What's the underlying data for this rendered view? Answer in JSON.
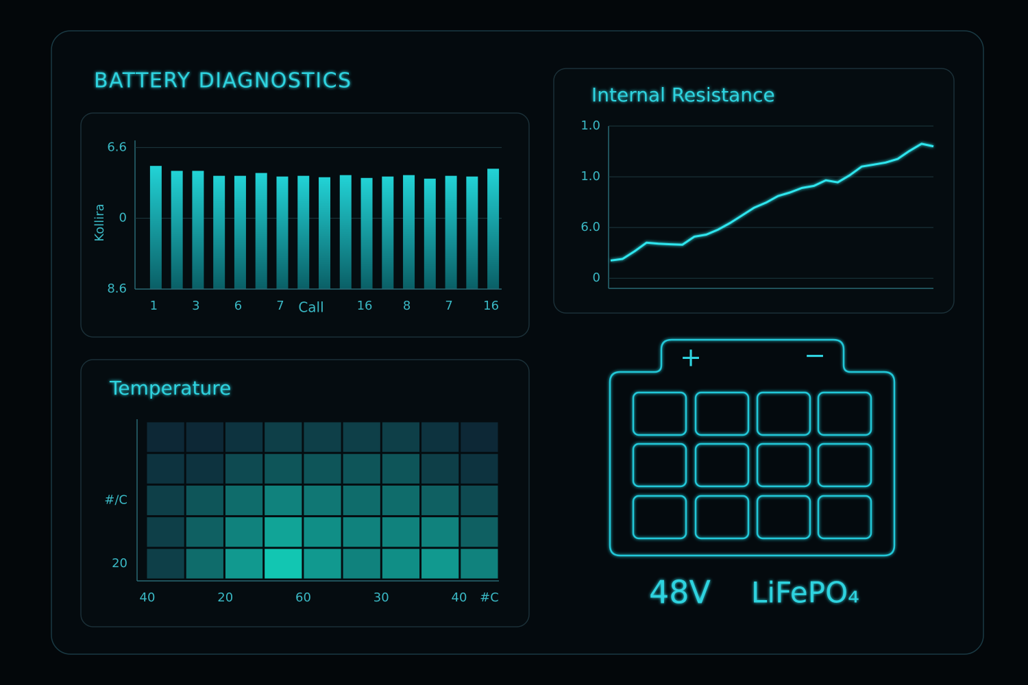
{
  "title": "BATTERY DIAGNOSTICS",
  "chart_data": [
    {
      "type": "bar",
      "y_label": "Kollira",
      "x_label": "Call",
      "color": "#22d3d6",
      "categories": [
        "1",
        null,
        "3",
        null,
        "6",
        null,
        "7",
        null,
        null,
        null,
        "16",
        null,
        "8",
        null,
        "7",
        null,
        "16"
      ],
      "values": [
        1.74,
        1.67,
        1.67,
        1.6,
        1.6,
        1.64,
        1.59,
        1.6,
        1.58,
        1.61,
        1.57,
        1.59,
        1.61,
        1.56,
        1.6,
        1.59,
        1.7
      ],
      "ylim": [
        0,
        2.1
      ],
      "yticks": [
        {
          "value": 0,
          "label": "8.6"
        },
        {
          "value": 1,
          "label": "0"
        },
        {
          "value": 2,
          "label": "6.6"
        }
      ],
      "grid": true
    },
    {
      "type": "line",
      "title": "Internal Resistance",
      "color": "#2ee6ee",
      "values": [
        0.35,
        0.38,
        0.53,
        0.7,
        0.68,
        0.67,
        0.66,
        0.82,
        0.86,
        0.96,
        1.09,
        1.24,
        1.39,
        1.49,
        1.62,
        1.69,
        1.78,
        1.82,
        1.93,
        1.89,
        2.03,
        2.2,
        2.24,
        2.28,
        2.35,
        2.51,
        2.65,
        2.6
      ],
      "ylim": [
        -0.2,
        3
      ],
      "yticks": [
        {
          "value": 0,
          "label": "0"
        },
        {
          "value": 1,
          "label": "6.0"
        },
        {
          "value": 2,
          "label": "1.0"
        },
        {
          "value": 3,
          "label": "1.0"
        }
      ],
      "grid": true
    },
    {
      "type": "heatmap",
      "title": "Temperature",
      "x_label": "#C",
      "colormap": [
        "#0d2836",
        "#12c6b2"
      ],
      "categories": [
        "40",
        "20",
        "60",
        "30",
        "40"
      ],
      "rows": [
        null,
        null,
        "#/C",
        null,
        "20"
      ],
      "values": [
        [
          2,
          2,
          2.5,
          3,
          3,
          3,
          3,
          2.5,
          2
        ],
        [
          2.5,
          2.5,
          3.5,
          4,
          4,
          4,
          4,
          3,
          2.5
        ],
        [
          3,
          4,
          5,
          6,
          5.5,
          5,
          5,
          4.5,
          3.5
        ],
        [
          3,
          4.5,
          6,
          7.5,
          6.5,
          6,
          6,
          6,
          4.5
        ],
        [
          3,
          5,
          7,
          9,
          7,
          6,
          6.5,
          7,
          6
        ]
      ]
    }
  ],
  "battery": {
    "plus": "+",
    "minus": "−",
    "voltage": "48V",
    "chemistry": "LiFePO₄"
  }
}
